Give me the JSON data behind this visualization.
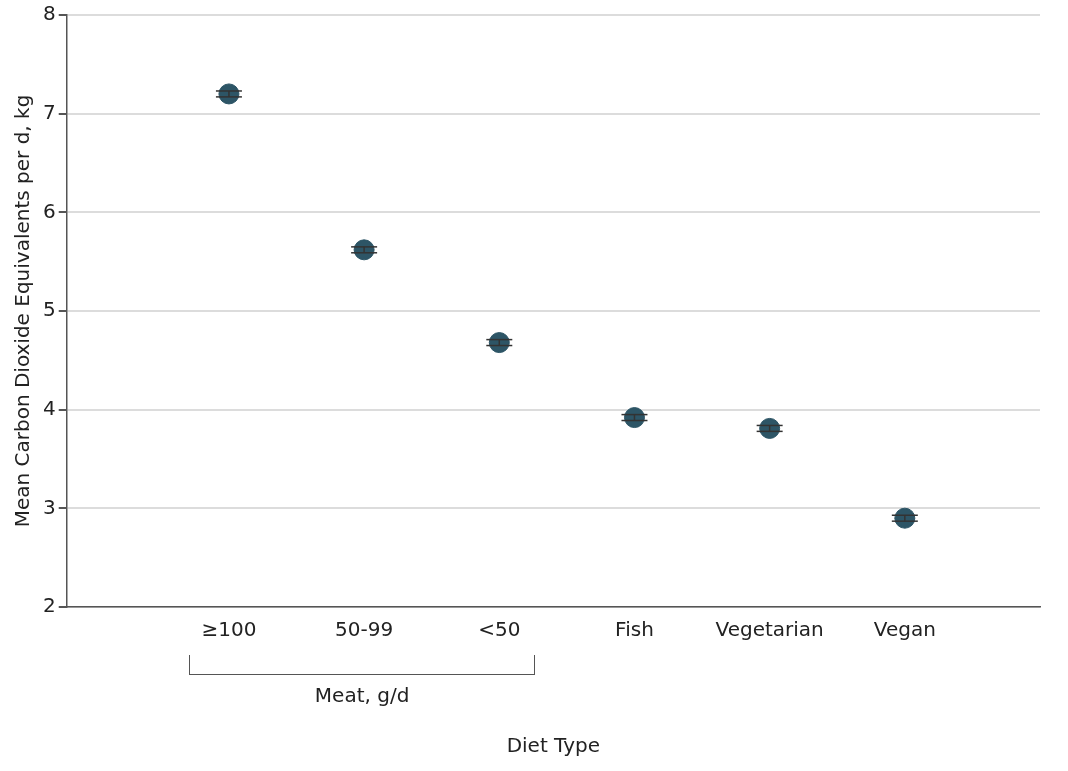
{
  "chart_data": {
    "type": "scatter",
    "xlabel": "Diet Type",
    "ylabel": "Mean Carbon Dioxide Equivalents per d, kg",
    "categories": [
      "≥100",
      "50-99",
      "<50",
      "Fish",
      "Vegetarian",
      "Vegan"
    ],
    "series": [
      {
        "color": "#2d5566",
        "values": [
          7.2,
          5.62,
          4.68,
          3.92,
          3.81,
          2.9
        ],
        "errors": [
          0.03,
          0.03,
          0.03,
          0.03,
          0.03,
          0.03
        ]
      }
    ],
    "ylim": [
      2,
      8
    ],
    "yticks": [
      2,
      3,
      4,
      5,
      6,
      7,
      8
    ],
    "grid": "y",
    "legend": false,
    "marker": "circle",
    "annotations": [
      "Meat, g/d"
    ]
  }
}
